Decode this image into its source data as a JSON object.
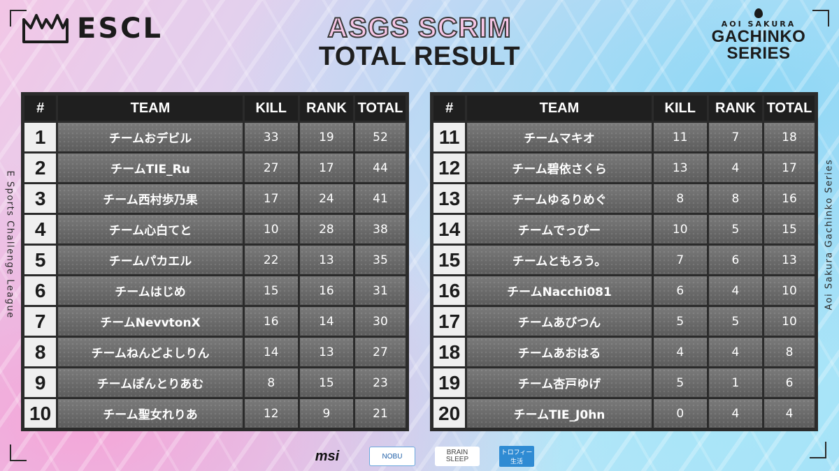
{
  "header": {
    "logo_text": "ESCL",
    "title_line1": "ASGS SCRIM",
    "title_line2": "TOTAL RESULT",
    "series_top": "AOI SAKURA",
    "series_bottom": "GACHINKO SERIES",
    "side_left": "E Sports Challenge League",
    "side_right": "Aoi Sakura Gachinko Series"
  },
  "columns": {
    "num": "#",
    "team": "TEAM",
    "kill": "KILL",
    "rank": "RANK",
    "total": "TOTAL"
  },
  "standings_left": [
    {
      "num": "1",
      "team": "チームおデビル",
      "kill": "33",
      "rank": "19",
      "total": "52"
    },
    {
      "num": "2",
      "team": "チームTIE_Ru",
      "kill": "27",
      "rank": "17",
      "total": "44"
    },
    {
      "num": "3",
      "team": "チーム西村歩乃果",
      "kill": "17",
      "rank": "24",
      "total": "41"
    },
    {
      "num": "4",
      "team": "チーム心白てと",
      "kill": "10",
      "rank": "28",
      "total": "38"
    },
    {
      "num": "5",
      "team": "チームパカエル",
      "kill": "22",
      "rank": "13",
      "total": "35"
    },
    {
      "num": "6",
      "team": "チームはじめ",
      "kill": "15",
      "rank": "16",
      "total": "31"
    },
    {
      "num": "7",
      "team": "チームNevvtonX",
      "kill": "16",
      "rank": "14",
      "total": "30"
    },
    {
      "num": "8",
      "team": "チームねんどよしりん",
      "kill": "14",
      "rank": "13",
      "total": "27"
    },
    {
      "num": "9",
      "team": "チームぽんとりあむ",
      "kill": "8",
      "rank": "15",
      "total": "23"
    },
    {
      "num": "10",
      "team": "チーム聖女れりあ",
      "kill": "12",
      "rank": "9",
      "total": "21"
    }
  ],
  "standings_right": [
    {
      "num": "11",
      "team": "チームマキオ",
      "kill": "11",
      "rank": "7",
      "total": "18"
    },
    {
      "num": "12",
      "team": "チーム碧依さくら",
      "kill": "13",
      "rank": "4",
      "total": "17"
    },
    {
      "num": "13",
      "team": "チームゆるりめぐ",
      "kill": "8",
      "rank": "8",
      "total": "16"
    },
    {
      "num": "14",
      "team": "チームでっぴー",
      "kill": "10",
      "rank": "5",
      "total": "15"
    },
    {
      "num": "15",
      "team": "チームともろう。",
      "kill": "7",
      "rank": "6",
      "total": "13"
    },
    {
      "num": "16",
      "team": "チームNacchi081",
      "kill": "6",
      "rank": "4",
      "total": "10"
    },
    {
      "num": "17",
      "team": "チームあびつん",
      "kill": "5",
      "rank": "5",
      "total": "10"
    },
    {
      "num": "18",
      "team": "チームあおはる",
      "kill": "4",
      "rank": "4",
      "total": "8"
    },
    {
      "num": "19",
      "team": "チーム杏戸ゆげ",
      "kill": "5",
      "rank": "1",
      "total": "6"
    },
    {
      "num": "20",
      "team": "チームTIE_J0hn",
      "kill": "0",
      "rank": "4",
      "total": "4"
    }
  ],
  "sponsors": {
    "msi": "msi",
    "nobu": "NOBU",
    "brain_line1": "BRAIN",
    "brain_line2": "SLEEP",
    "trophy_line1": "トロフィー",
    "trophy_line2": "生活"
  }
}
